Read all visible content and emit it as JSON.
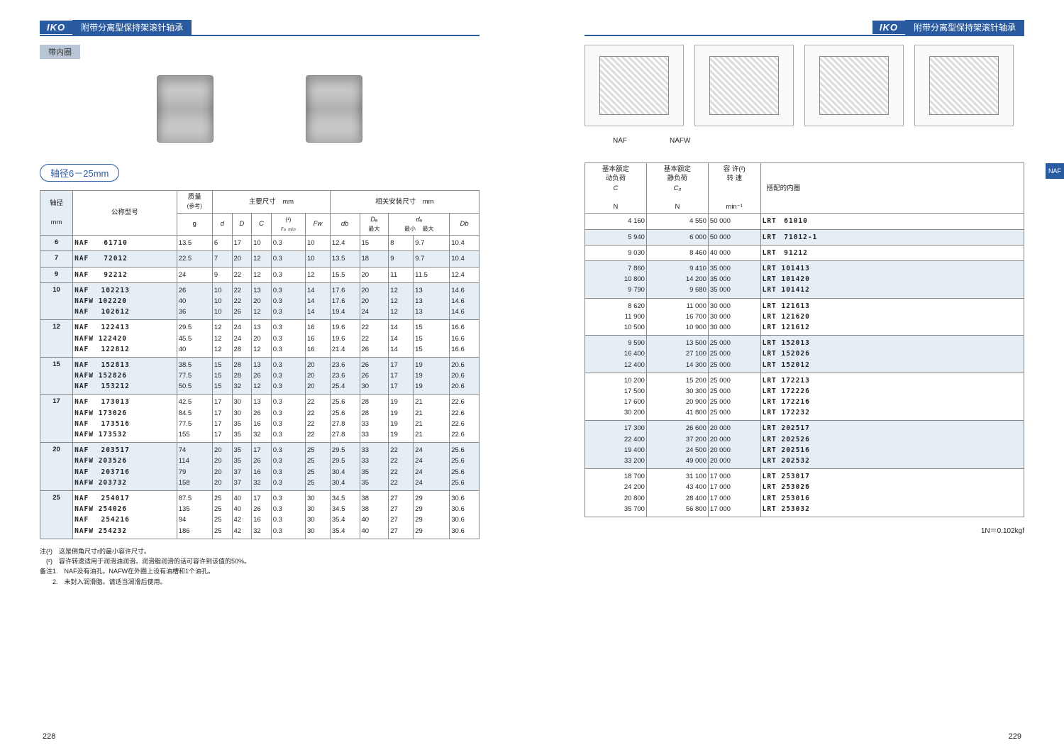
{
  "header": {
    "logo": "IKO",
    "title": "附带分离型保持架滚针轴承"
  },
  "badge": "带内圈",
  "range_label": "轴径6－25mm",
  "diag_labels": [
    "NAF",
    "NAFW"
  ],
  "tab_label": "NAF",
  "notes": {
    "n1": "注(¹)　这是倒角尺寸r的最小容许尺寸。",
    "n2": "　(²)　容许转速适用于润滑油润滑。润滑脂润滑的话可容许到该值的50%。",
    "n3": "备注1.　NAF没有油孔。NAFW在外圈上设有油槽和1个油孔。",
    "n4": "　　2.　未封入润滑脂。请适当润滑后使用。",
    "nr": "1N＝0.102kgf"
  },
  "left_head": {
    "c1": "轴径",
    "c1u": "mm",
    "c2": "公称型号",
    "c3": "质量",
    "c3s": "(参考)",
    "c3u": "g",
    "g1": "主要尺寸　mm",
    "g2": "相关安装尺寸　mm",
    "d": "d",
    "D": "D",
    "C": "C",
    "rs": "(¹)",
    "rs2": "rₛ ₘᵢₙ",
    "Fw": "Fw",
    "db": "db",
    "Da": "Dₐ",
    "da": "dₐ",
    "Db": "Db",
    "max": "最大",
    "min": "最小"
  },
  "right_head": {
    "c1": "基本额定",
    "c1l2": "动负荷",
    "c1l3": "C",
    "c1u": "N",
    "c2": "基本额定",
    "c2l2": "静负荷",
    "c2l3": "C₀",
    "c2u": "N",
    "c3": "容 许(²)",
    "c3l2": "转 速",
    "c3u": "min⁻¹",
    "c4": "搭配的内圈"
  },
  "rows": [
    {
      "shaft": "6",
      "models": [
        "NAF　　61710"
      ],
      "g": [
        "13.5"
      ],
      "d": [
        "6"
      ],
      "D": [
        "17"
      ],
      "C": [
        "10"
      ],
      "rs": [
        "0.3"
      ],
      "Fw": [
        "10"
      ],
      "db": [
        "12.4"
      ],
      "Da": [
        "15"
      ],
      "damin": [
        "8"
      ],
      "damax": [
        "9.7"
      ],
      "Db": [
        "10.4"
      ],
      "Cn": [
        "4 160"
      ],
      "C0": [
        "4 550"
      ],
      "rpm": [
        "50 000"
      ],
      "ring": [
        "LRT　61010"
      ]
    },
    {
      "shaft": "7",
      "models": [
        "NAF　　72012"
      ],
      "g": [
        "22.5"
      ],
      "d": [
        "7"
      ],
      "D": [
        "20"
      ],
      "C": [
        "12"
      ],
      "rs": [
        "0.3"
      ],
      "Fw": [
        "10"
      ],
      "db": [
        "13.5"
      ],
      "Da": [
        "18"
      ],
      "damin": [
        "9"
      ],
      "damax": [
        "9.7"
      ],
      "Db": [
        "10.4"
      ],
      "Cn": [
        "5 940"
      ],
      "C0": [
        "6 000"
      ],
      "rpm": [
        "50 000"
      ],
      "ring": [
        "LRT　71012-1"
      ]
    },
    {
      "shaft": "9",
      "models": [
        "NAF　　92212"
      ],
      "g": [
        "24"
      ],
      "d": [
        "9"
      ],
      "D": [
        "22"
      ],
      "C": [
        "12"
      ],
      "rs": [
        "0.3"
      ],
      "Fw": [
        "12"
      ],
      "db": [
        "15.5"
      ],
      "Da": [
        "20"
      ],
      "damin": [
        "11"
      ],
      "damax": [
        "11.5"
      ],
      "Db": [
        "12.4"
      ],
      "Cn": [
        "9 030"
      ],
      "C0": [
        "8 460"
      ],
      "rpm": [
        "40 000"
      ],
      "ring": [
        "LRT　91212"
      ]
    },
    {
      "shaft": "10",
      "models": [
        "NAF　 102213",
        "NAFW 102220",
        "NAF　 102612"
      ],
      "g": [
        "26",
        "40",
        "36"
      ],
      "d": [
        "10",
        "10",
        "10"
      ],
      "D": [
        "22",
        "22",
        "26"
      ],
      "C": [
        "13",
        "20",
        "12"
      ],
      "rs": [
        "0.3",
        "0.3",
        "0.3"
      ],
      "Fw": [
        "14",
        "14",
        "14"
      ],
      "db": [
        "17.6",
        "17.6",
        "19.4"
      ],
      "Da": [
        "20",
        "20",
        "24"
      ],
      "damin": [
        "12",
        "12",
        "12"
      ],
      "damax": [
        "13",
        "13",
        "13"
      ],
      "Db": [
        "14.6",
        "14.6",
        "14.6"
      ],
      "Cn": [
        "7 860",
        "10 800",
        "9 790"
      ],
      "C0": [
        "9 410",
        "14 200",
        "9 680"
      ],
      "rpm": [
        "35 000",
        "35 000",
        "35 000"
      ],
      "ring": [
        "LRT 101413",
        "LRT 101420",
        "LRT 101412"
      ]
    },
    {
      "shaft": "12",
      "models": [
        "NAF　 122413",
        "NAFW 122420",
        "NAF　 122812"
      ],
      "g": [
        "29.5",
        "45.5",
        "40"
      ],
      "d": [
        "12",
        "12",
        "12"
      ],
      "D": [
        "24",
        "24",
        "28"
      ],
      "C": [
        "13",
        "20",
        "12"
      ],
      "rs": [
        "0.3",
        "0.3",
        "0.3"
      ],
      "Fw": [
        "16",
        "16",
        "16"
      ],
      "db": [
        "19.6",
        "19.6",
        "21.4"
      ],
      "Da": [
        "22",
        "22",
        "26"
      ],
      "damin": [
        "14",
        "14",
        "14"
      ],
      "damax": [
        "15",
        "15",
        "15"
      ],
      "Db": [
        "16.6",
        "16.6",
        "16.6"
      ],
      "Cn": [
        "8 620",
        "11 900",
        "10 500"
      ],
      "C0": [
        "11 000",
        "16 700",
        "10 900"
      ],
      "rpm": [
        "30 000",
        "30 000",
        "30 000"
      ],
      "ring": [
        "LRT 121613",
        "LRT 121620",
        "LRT 121612"
      ]
    },
    {
      "shaft": "15",
      "models": [
        "NAF　 152813",
        "NAFW 152826",
        "NAF　 153212"
      ],
      "g": [
        "38.5",
        "77.5",
        "50.5"
      ],
      "d": [
        "15",
        "15",
        "15"
      ],
      "D": [
        "28",
        "28",
        "32"
      ],
      "C": [
        "13",
        "26",
        "12"
      ],
      "rs": [
        "0.3",
        "0.3",
        "0.3"
      ],
      "Fw": [
        "20",
        "20",
        "20"
      ],
      "db": [
        "23.6",
        "23.6",
        "25.4"
      ],
      "Da": [
        "26",
        "26",
        "30"
      ],
      "damin": [
        "17",
        "17",
        "17"
      ],
      "damax": [
        "19",
        "19",
        "19"
      ],
      "Db": [
        "20.6",
        "20.6",
        "20.6"
      ],
      "Cn": [
        "9 590",
        "16 400",
        "12 400"
      ],
      "C0": [
        "13 500",
        "27 100",
        "14 300"
      ],
      "rpm": [
        "25 000",
        "25 000",
        "25 000"
      ],
      "ring": [
        "LRT 152013",
        "LRT 152026",
        "LRT 152012"
      ]
    },
    {
      "shaft": "17",
      "models": [
        "NAF　 173013",
        "NAFW 173026",
        "NAF　 173516",
        "NAFW 173532"
      ],
      "g": [
        "42.5",
        "84.5",
        "77.5",
        "155"
      ],
      "d": [
        "17",
        "17",
        "17",
        "17"
      ],
      "D": [
        "30",
        "30",
        "35",
        "35"
      ],
      "C": [
        "13",
        "26",
        "16",
        "32"
      ],
      "rs": [
        "0.3",
        "0.3",
        "0.3",
        "0.3"
      ],
      "Fw": [
        "22",
        "22",
        "22",
        "22"
      ],
      "db": [
        "25.6",
        "25.6",
        "27.8",
        "27.8"
      ],
      "Da": [
        "28",
        "28",
        "33",
        "33"
      ],
      "damin": [
        "19",
        "19",
        "19",
        "19"
      ],
      "damax": [
        "21",
        "21",
        "21",
        "21"
      ],
      "Db": [
        "22.6",
        "22.6",
        "22.6",
        "22.6"
      ],
      "Cn": [
        "10 200",
        "17 500",
        "17 600",
        "30 200"
      ],
      "C0": [
        "15 200",
        "30 300",
        "20 900",
        "41 800"
      ],
      "rpm": [
        "25 000",
        "25 000",
        "25 000",
        "25 000"
      ],
      "ring": [
        "LRT 172213",
        "LRT 172226",
        "LRT 172216",
        "LRT 172232"
      ]
    },
    {
      "shaft": "20",
      "models": [
        "NAF　 203517",
        "NAFW 203526",
        "NAF　 203716",
        "NAFW 203732"
      ],
      "g": [
        "74",
        "114",
        "79",
        "158"
      ],
      "d": [
        "20",
        "20",
        "20",
        "20"
      ],
      "D": [
        "35",
        "35",
        "37",
        "37"
      ],
      "C": [
        "17",
        "26",
        "16",
        "32"
      ],
      "rs": [
        "0.3",
        "0.3",
        "0.3",
        "0.3"
      ],
      "Fw": [
        "25",
        "25",
        "25",
        "25"
      ],
      "db": [
        "29.5",
        "29.5",
        "30.4",
        "30.4"
      ],
      "Da": [
        "33",
        "33",
        "35",
        "35"
      ],
      "damin": [
        "22",
        "22",
        "22",
        "22"
      ],
      "damax": [
        "24",
        "24",
        "24",
        "24"
      ],
      "Db": [
        "25.6",
        "25.6",
        "25.6",
        "25.6"
      ],
      "Cn": [
        "17 300",
        "22 400",
        "19 400",
        "33 200"
      ],
      "C0": [
        "26 600",
        "37 200",
        "24 500",
        "49 000"
      ],
      "rpm": [
        "20 000",
        "20 000",
        "20 000",
        "20 000"
      ],
      "ring": [
        "LRT 202517",
        "LRT 202526",
        "LRT 202516",
        "LRT 202532"
      ]
    },
    {
      "shaft": "25",
      "models": [
        "NAF　 254017",
        "NAFW 254026",
        "NAF　 254216",
        "NAFW 254232"
      ],
      "g": [
        "87.5",
        "135",
        "94",
        "186"
      ],
      "d": [
        "25",
        "25",
        "25",
        "25"
      ],
      "D": [
        "40",
        "40",
        "42",
        "42"
      ],
      "C": [
        "17",
        "26",
        "16",
        "32"
      ],
      "rs": [
        "0.3",
        "0.3",
        "0.3",
        "0.3"
      ],
      "Fw": [
        "30",
        "30",
        "30",
        "30"
      ],
      "db": [
        "34.5",
        "34.5",
        "35.4",
        "35.4"
      ],
      "Da": [
        "38",
        "38",
        "40",
        "40"
      ],
      "damin": [
        "27",
        "27",
        "27",
        "27"
      ],
      "damax": [
        "29",
        "29",
        "29",
        "29"
      ],
      "Db": [
        "30.6",
        "30.6",
        "30.6",
        "30.6"
      ],
      "Cn": [
        "18 700",
        "24 200",
        "20 800",
        "35 700"
      ],
      "C0": [
        "31 100",
        "43 400",
        "28 400",
        "56 800"
      ],
      "rpm": [
        "17 000",
        "17 000",
        "17 000",
        "17 000"
      ],
      "ring": [
        "LRT 253017",
        "LRT 253026",
        "LRT 253016",
        "LRT 253032"
      ]
    }
  ],
  "page_l": "228",
  "page_r": "229"
}
